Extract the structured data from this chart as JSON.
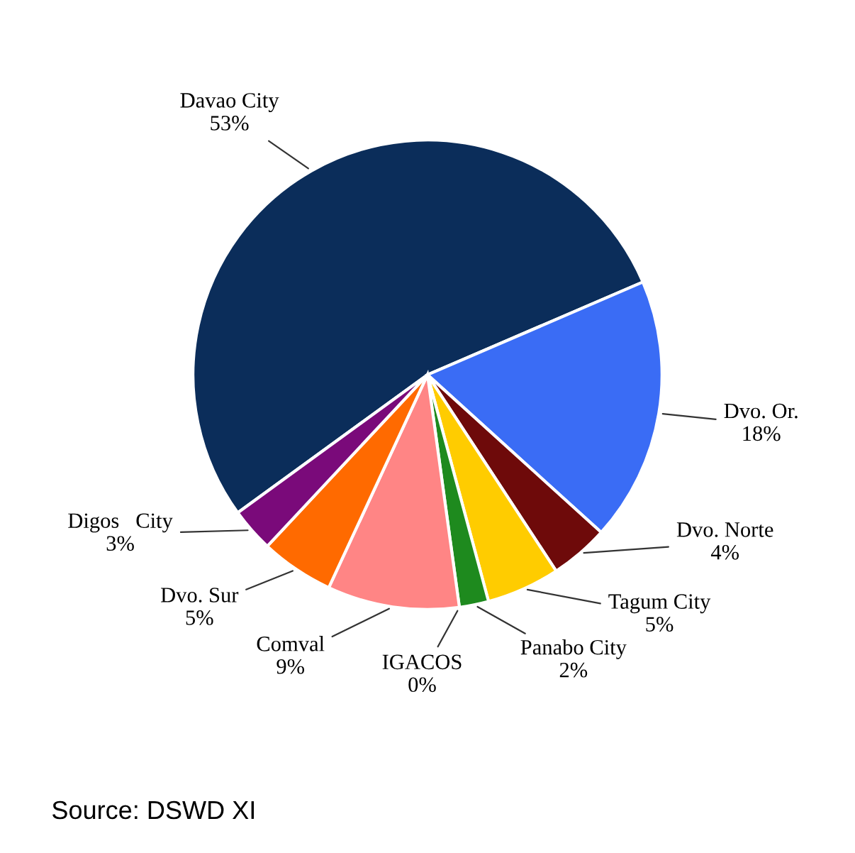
{
  "chart_data": {
    "type": "pie",
    "categories": [
      "Davao City",
      "Dvo. Or.",
      "Dvo. Norte",
      "Tagum City",
      "Panabo City",
      "IGACOS",
      "Comval",
      "Dvo. Sur",
      "Digos   City"
    ],
    "values": [
      53,
      18,
      4,
      5,
      2,
      0,
      9,
      5,
      3
    ],
    "value_labels": [
      "53%",
      "18%",
      "4%",
      "5%",
      "2%",
      "0%",
      "9%",
      "5%",
      "3%"
    ],
    "colors": [
      "#0b2d5a",
      "#3a6cf5",
      "#6e0a0a",
      "#ffcc00",
      "#1e8a1e",
      "#888888",
      "#ff8585",
      "#ff6a00",
      "#7a0a7a"
    ],
    "annotations": [
      "Source: DSWD XI"
    ]
  }
}
